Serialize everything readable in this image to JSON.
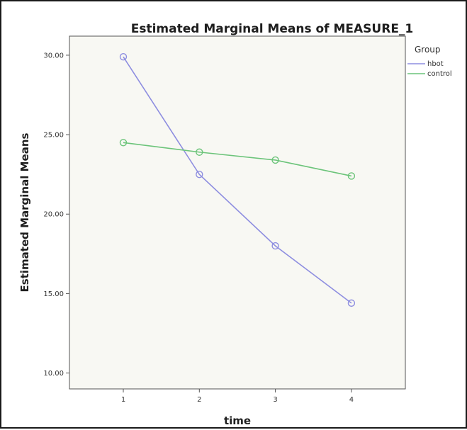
{
  "chart_data": {
    "type": "line",
    "title": "Estimated Marginal Means of MEASURE_1",
    "xlabel": "time",
    "ylabel": "Estimated Marginal Means",
    "categories": [
      "1",
      "2",
      "3",
      "4"
    ],
    "yticks": [
      "10.00",
      "15.00",
      "20.00",
      "25.00",
      "30.00"
    ],
    "ylim": [
      9.0,
      31.2
    ],
    "legend": {
      "title": "Group",
      "placement": "right"
    },
    "series": [
      {
        "name": "hbot",
        "color": "#8e8ee0",
        "values": [
          29.9,
          22.5,
          18.0,
          14.4
        ]
      },
      {
        "name": "control",
        "color": "#6cc47a",
        "values": [
          24.5,
          23.9,
          23.4,
          22.4
        ]
      }
    ],
    "grid": false
  }
}
